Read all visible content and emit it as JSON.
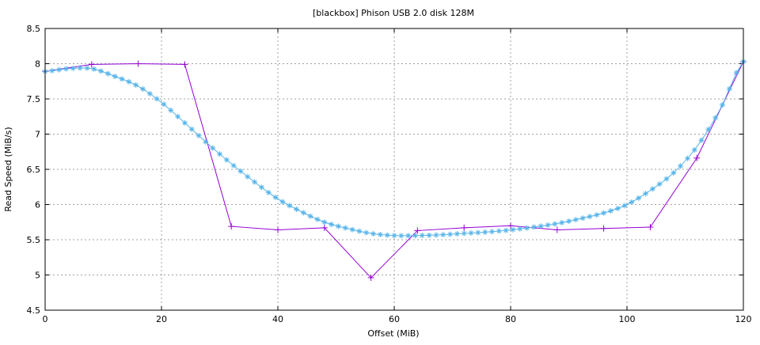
{
  "chart_data": {
    "type": "line",
    "title": "[blackbox] Phison USB 2.0 disk 128M",
    "xlabel": "Offset (MiB)",
    "ylabel": "Read Speed (MiB/s)",
    "xlim": [
      0,
      120
    ],
    "ylim": [
      4.5,
      8.5
    ],
    "xticks": [
      0,
      20,
      40,
      60,
      80,
      100,
      120
    ],
    "yticks": [
      4.5,
      5,
      5.5,
      6,
      6.5,
      7,
      7.5,
      8,
      8.5
    ],
    "grid": true,
    "series": [
      {
        "color": "#9400d3",
        "marker": "plus",
        "x": [
          0,
          8,
          16,
          24,
          32,
          40,
          48,
          56,
          64,
          72,
          80,
          88,
          96,
          104,
          112,
          120
        ],
        "y": [
          7.89,
          7.99,
          8.0,
          7.99,
          5.69,
          5.64,
          5.67,
          4.96,
          5.63,
          5.67,
          5.7,
          5.64,
          5.66,
          5.68,
          6.66,
          8.03
        ]
      },
      {
        "color": "#56b4e9",
        "marker": "asterisk",
        "x": [
          0,
          4,
          8,
          12,
          16,
          20,
          24,
          28,
          32,
          36,
          40,
          44,
          48,
          52,
          56,
          60,
          64,
          68,
          72,
          76,
          80,
          84,
          88,
          92,
          96,
          100,
          104,
          108,
          112,
          116,
          120
        ],
        "y": [
          7.89,
          7.93,
          7.93,
          7.82,
          7.68,
          7.45,
          7.16,
          6.86,
          6.58,
          6.32,
          6.08,
          5.9,
          5.75,
          5.66,
          5.59,
          5.56,
          5.56,
          5.57,
          5.59,
          5.61,
          5.64,
          5.68,
          5.73,
          5.8,
          5.88,
          6.0,
          6.2,
          6.45,
          6.82,
          7.35,
          8.03
        ]
      }
    ]
  }
}
